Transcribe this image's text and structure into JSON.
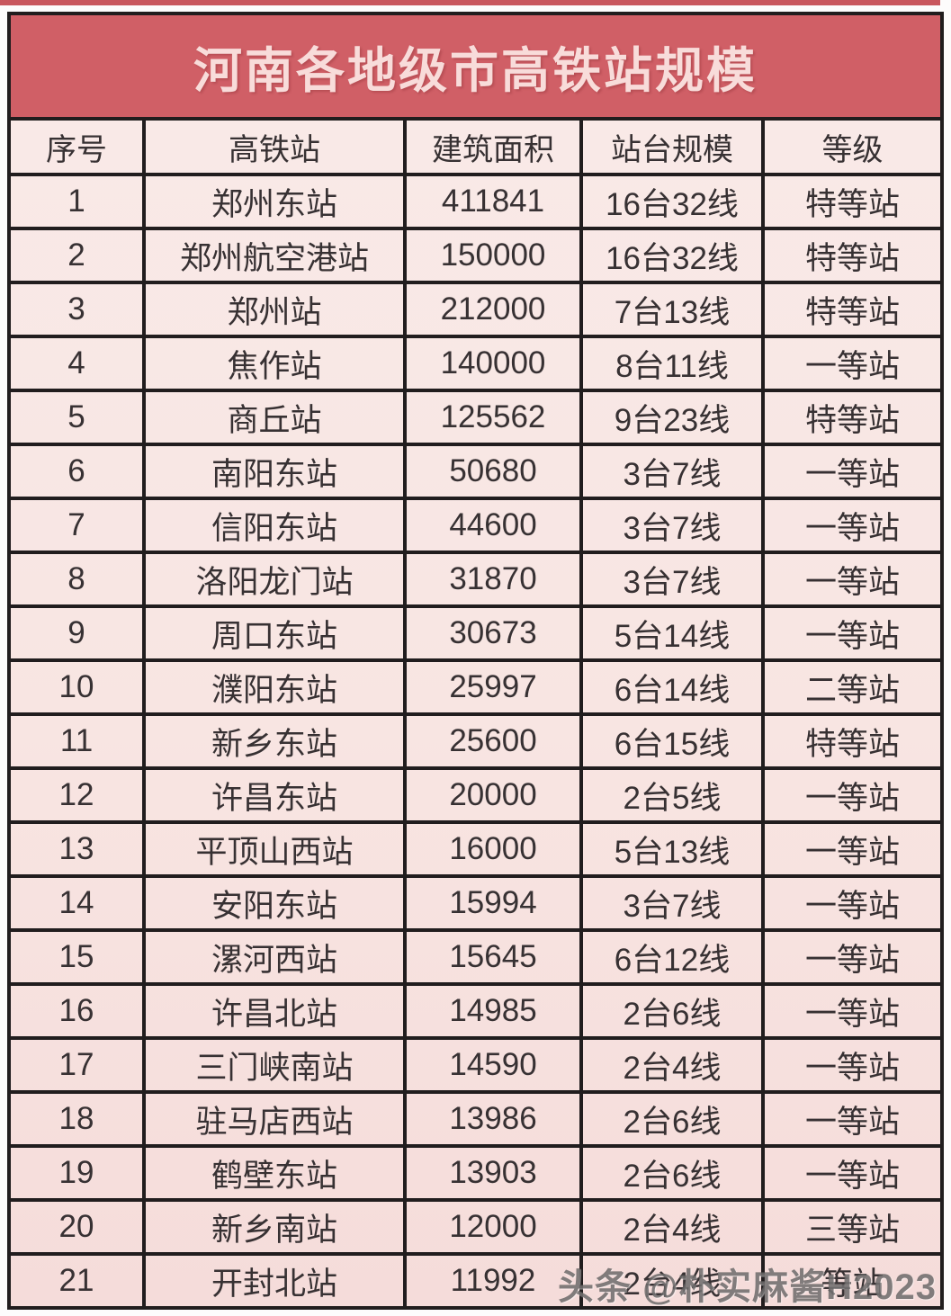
{
  "page": {
    "watermark": "头条 @朴实麻酱H2023"
  },
  "colors": {
    "title_bg": "#d05f66",
    "top_strip": "#c9575e",
    "cell_bg_top": "#f9eae8",
    "cell_bg_bottom": "#f5dcda",
    "grid_border": "#211d1e",
    "title_text": "#f8dcda",
    "cell_text": "#373133",
    "watermark_text": "#5f5c5c"
  },
  "chart_data": {
    "type": "table",
    "title": "河南各地级市高铁站规模",
    "columns": [
      "序号",
      "高铁站",
      "建筑面积",
      "站台规模",
      "等级"
    ],
    "rows": [
      [
        "1",
        "郑州东站",
        "411841",
        "16台32线",
        "特等站"
      ],
      [
        "2",
        "郑州航空港站",
        "150000",
        "16台32线",
        "特等站"
      ],
      [
        "3",
        "郑州站",
        "212000",
        "7台13线",
        "特等站"
      ],
      [
        "4",
        "焦作站",
        "140000",
        "8台11线",
        "一等站"
      ],
      [
        "5",
        "商丘站",
        "125562",
        "9台23线",
        "特等站"
      ],
      [
        "6",
        "南阳东站",
        "50680",
        "3台7线",
        "一等站"
      ],
      [
        "7",
        "信阳东站",
        "44600",
        "3台7线",
        "一等站"
      ],
      [
        "8",
        "洛阳龙门站",
        "31870",
        "3台7线",
        "一等站"
      ],
      [
        "9",
        "周口东站",
        "30673",
        "5台14线",
        "一等站"
      ],
      [
        "10",
        "濮阳东站",
        "25997",
        "6台14线",
        "二等站"
      ],
      [
        "11",
        "新乡东站",
        "25600",
        "6台15线",
        "特等站"
      ],
      [
        "12",
        "许昌东站",
        "20000",
        "2台5线",
        "一等站"
      ],
      [
        "13",
        "平顶山西站",
        "16000",
        "5台13线",
        "一等站"
      ],
      [
        "14",
        "安阳东站",
        "15994",
        "3台7线",
        "一等站"
      ],
      [
        "15",
        "漯河西站",
        "15645",
        "6台12线",
        "一等站"
      ],
      [
        "16",
        "许昌北站",
        "14985",
        "2台6线",
        "一等站"
      ],
      [
        "17",
        "三门峡南站",
        "14590",
        "2台4线",
        "一等站"
      ],
      [
        "18",
        "驻马店西站",
        "13986",
        "2台6线",
        "一等站"
      ],
      [
        "19",
        "鹤壁东站",
        "13903",
        "2台6线",
        "一等站"
      ],
      [
        "20",
        "新乡南站",
        "12000",
        "2台4线",
        "三等站"
      ],
      [
        "21",
        "开封北站",
        "11992",
        "2台4线",
        "等站"
      ]
    ]
  }
}
